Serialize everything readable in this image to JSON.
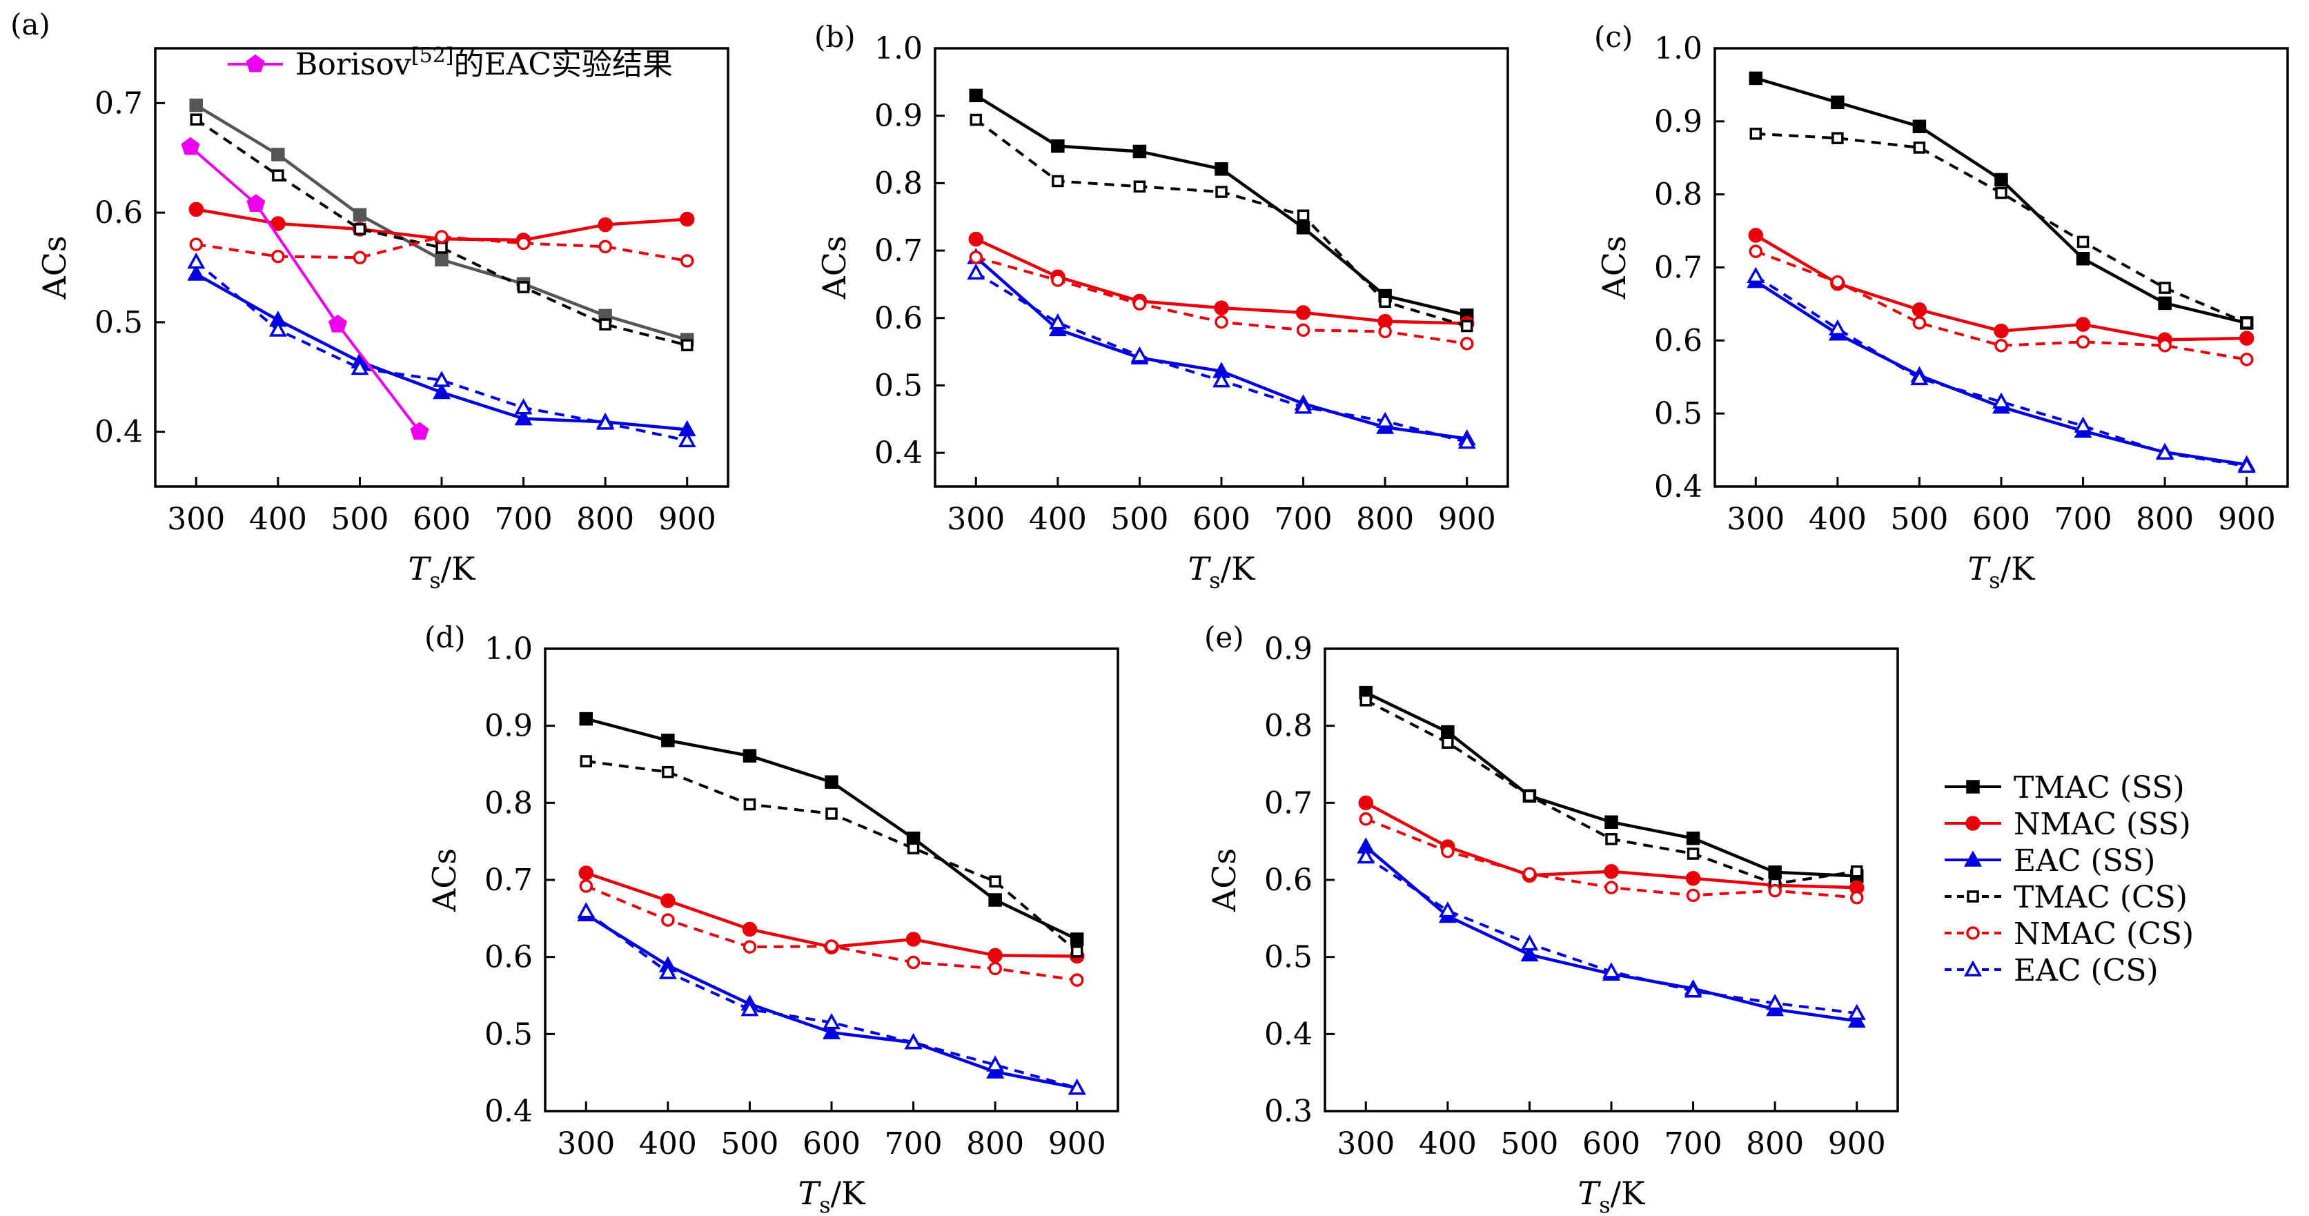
{
  "figure": {
    "legend": [
      {
        "key": "tmac_ss",
        "label": "TMAC (SS)"
      },
      {
        "key": "nmac_ss",
        "label": "NMAC (SS)"
      },
      {
        "key": "eac_ss",
        "label": "EAC (SS)"
      },
      {
        "key": "tmac_cs",
        "label": "TMAC (CS)"
      },
      {
        "key": "nmac_cs",
        "label": "NMAC (CS)"
      },
      {
        "key": "eac_cs",
        "label": "EAC (CS)"
      }
    ],
    "legend_placement": "right of panel (e)",
    "colors": {
      "black": "#000000",
      "gray": "#555555",
      "red": "#e8000b",
      "blue": "#0000e0",
      "magenta": "#ee00ee"
    }
  },
  "chart_data": [
    {
      "type": "line",
      "panel_label": "(a)",
      "xlabel": "T_s/K",
      "ylabel": "ACs",
      "x": [
        300,
        400,
        500,
        600,
        700,
        800,
        900
      ],
      "xticks": [
        "300",
        "400",
        "500",
        "600",
        "700",
        "800",
        "900"
      ],
      "ylim": [
        0.35,
        0.75
      ],
      "yticks": [
        "0.4",
        "0.5",
        "0.6",
        "0.7"
      ],
      "ytick_values": [
        0.4,
        0.5,
        0.6,
        0.7
      ],
      "series": [
        {
          "key": "tmac_ss",
          "name": "TMAC (SS)",
          "values": [
            0.698,
            0.653,
            0.598,
            0.557,
            0.535,
            0.506,
            0.484
          ]
        },
        {
          "key": "nmac_ss",
          "name": "NMAC (SS)",
          "values": [
            0.603,
            0.59,
            0.585,
            0.576,
            0.575,
            0.589,
            0.594
          ]
        },
        {
          "key": "eac_ss",
          "name": "EAC (SS)",
          "values": [
            0.544,
            0.502,
            0.464,
            0.436,
            0.412,
            0.409,
            0.402
          ]
        },
        {
          "key": "tmac_cs",
          "name": "TMAC (CS)",
          "values": [
            0.685,
            0.634,
            0.585,
            0.568,
            0.532,
            0.498,
            0.479
          ]
        },
        {
          "key": "nmac_cs",
          "name": "NMAC (CS)",
          "values": [
            0.571,
            0.56,
            0.559,
            0.578,
            0.572,
            0.569,
            0.556
          ]
        },
        {
          "key": "eac_cs",
          "name": "EAC (CS)",
          "values": [
            0.555,
            0.493,
            0.458,
            0.447,
            0.422,
            0.408,
            0.392
          ]
        }
      ],
      "extra_series": {
        "key": "borisov",
        "name": "Borisov[52]的EAC实验结果",
        "label_main": "Borisov",
        "label_sup": "[52]",
        "label_tail": "的EAC实验结果",
        "x": [
          293,
          373,
          473,
          573
        ],
        "values": [
          0.66,
          0.608,
          0.498,
          0.4
        ]
      }
    },
    {
      "type": "line",
      "panel_label": "(b)",
      "xlabel": "T_s/K",
      "ylabel": "ACs",
      "x": [
        300,
        400,
        500,
        600,
        700,
        800,
        900
      ],
      "xticks": [
        "300",
        "400",
        "500",
        "600",
        "700",
        "800",
        "900"
      ],
      "ylim": [
        0.35,
        1.0
      ],
      "yticks": [
        "0.4",
        "0.5",
        "0.6",
        "0.7",
        "0.8",
        "0.9",
        "1.0"
      ],
      "ytick_values": [
        0.4,
        0.5,
        0.6,
        0.7,
        0.8,
        0.9,
        1.0
      ],
      "series": [
        {
          "key": "tmac_ss",
          "name": "TMAC (SS)",
          "values": [
            0.93,
            0.855,
            0.847,
            0.821,
            0.734,
            0.633,
            0.604
          ]
        },
        {
          "key": "nmac_ss",
          "name": "NMAC (SS)",
          "values": [
            0.717,
            0.661,
            0.625,
            0.615,
            0.608,
            0.595,
            0.592
          ]
        },
        {
          "key": "eac_ss",
          "name": "EAC (SS)",
          "values": [
            0.69,
            0.583,
            0.541,
            0.521,
            0.473,
            0.438,
            0.421
          ]
        },
        {
          "key": "tmac_cs",
          "name": "TMAC (CS)",
          "values": [
            0.894,
            0.803,
            0.795,
            0.787,
            0.752,
            0.624,
            0.588
          ]
        },
        {
          "key": "nmac_cs",
          "name": "NMAC (CS)",
          "values": [
            0.69,
            0.656,
            0.621,
            0.594,
            0.582,
            0.58,
            0.562
          ]
        },
        {
          "key": "eac_cs",
          "name": "EAC (CS)",
          "values": [
            0.667,
            0.593,
            0.544,
            0.507,
            0.468,
            0.447,
            0.416
          ]
        }
      ]
    },
    {
      "type": "line",
      "panel_label": "(c)",
      "xlabel": "T_s/K",
      "ylabel": "ACs",
      "x": [
        300,
        400,
        500,
        600,
        700,
        800,
        900
      ],
      "xticks": [
        "300",
        "400",
        "500",
        "600",
        "700",
        "800",
        "900"
      ],
      "ylim": [
        0.4,
        1.0
      ],
      "yticks": [
        "0.4",
        "0.5",
        "0.6",
        "0.7",
        "0.8",
        "0.9",
        "1.0"
      ],
      "ytick_values": [
        0.4,
        0.5,
        0.6,
        0.7,
        0.8,
        0.9,
        1.0
      ],
      "series": [
        {
          "key": "tmac_ss",
          "name": "TMAC (SS)",
          "values": [
            0.959,
            0.926,
            0.893,
            0.82,
            0.712,
            0.651,
            0.624
          ]
        },
        {
          "key": "nmac_ss",
          "name": "NMAC (SS)",
          "values": [
            0.744,
            0.678,
            0.642,
            0.613,
            0.622,
            0.601,
            0.603
          ]
        },
        {
          "key": "eac_ss",
          "name": "EAC (SS)",
          "values": [
            0.681,
            0.609,
            0.552,
            0.509,
            0.476,
            0.447,
            0.43
          ]
        },
        {
          "key": "tmac_cs",
          "name": "TMAC (CS)",
          "values": [
            0.883,
            0.877,
            0.864,
            0.802,
            0.735,
            0.672,
            0.624
          ]
        },
        {
          "key": "nmac_cs",
          "name": "NMAC (CS)",
          "values": [
            0.722,
            0.68,
            0.624,
            0.593,
            0.598,
            0.593,
            0.574
          ]
        },
        {
          "key": "eac_cs",
          "name": "EAC (CS)",
          "values": [
            0.688,
            0.616,
            0.548,
            0.516,
            0.483,
            0.446,
            0.428
          ]
        }
      ]
    },
    {
      "type": "line",
      "panel_label": "(d)",
      "xlabel": "T_s/K",
      "ylabel": "ACs",
      "x": [
        300,
        400,
        500,
        600,
        700,
        800,
        900
      ],
      "xticks": [
        "300",
        "400",
        "500",
        "600",
        "700",
        "800",
        "900"
      ],
      "ylim": [
        0.4,
        1.0
      ],
      "yticks": [
        "0.4",
        "0.5",
        "0.6",
        "0.7",
        "0.8",
        "0.9",
        "1.0"
      ],
      "ytick_values": [
        0.4,
        0.5,
        0.6,
        0.7,
        0.8,
        0.9,
        1.0
      ],
      "series": [
        {
          "key": "tmac_ss",
          "name": "TMAC (SS)",
          "values": [
            0.909,
            0.881,
            0.861,
            0.827,
            0.754,
            0.674,
            0.623
          ]
        },
        {
          "key": "nmac_ss",
          "name": "NMAC (SS)",
          "values": [
            0.709,
            0.673,
            0.636,
            0.613,
            0.623,
            0.602,
            0.601
          ]
        },
        {
          "key": "eac_ss",
          "name": "EAC (SS)",
          "values": [
            0.655,
            0.589,
            0.539,
            0.502,
            0.489,
            0.451,
            0.43
          ]
        },
        {
          "key": "tmac_cs",
          "name": "TMAC (CS)",
          "values": [
            0.854,
            0.84,
            0.798,
            0.786,
            0.741,
            0.698,
            0.607
          ]
        },
        {
          "key": "nmac_cs",
          "name": "NMAC (CS)",
          "values": [
            0.692,
            0.648,
            0.613,
            0.614,
            0.593,
            0.585,
            0.57
          ]
        },
        {
          "key": "eac_cs",
          "name": "EAC (CS)",
          "values": [
            0.659,
            0.58,
            0.532,
            0.515,
            0.489,
            0.46,
            0.43
          ]
        }
      ]
    },
    {
      "type": "line",
      "panel_label": "(e)",
      "xlabel": "T_s/K",
      "ylabel": "ACs",
      "x": [
        300,
        400,
        500,
        600,
        700,
        800,
        900
      ],
      "xticks": [
        "300",
        "400",
        "500",
        "600",
        "700",
        "800",
        "900"
      ],
      "ylim": [
        0.3,
        0.9
      ],
      "yticks": [
        "0.3",
        "0.4",
        "0.5",
        "0.6",
        "0.7",
        "0.8",
        "0.9"
      ],
      "ytick_values": [
        0.3,
        0.4,
        0.5,
        0.6,
        0.7,
        0.8,
        0.9
      ],
      "series": [
        {
          "key": "tmac_ss",
          "name": "TMAC (SS)",
          "values": [
            0.843,
            0.792,
            0.709,
            0.675,
            0.654,
            0.61,
            0.605
          ]
        },
        {
          "key": "nmac_ss",
          "name": "NMAC (SS)",
          "values": [
            0.7,
            0.643,
            0.606,
            0.611,
            0.602,
            0.593,
            0.59
          ]
        },
        {
          "key": "eac_ss",
          "name": "EAC (SS)",
          "values": [
            0.643,
            0.553,
            0.503,
            0.478,
            0.459,
            0.432,
            0.417
          ]
        },
        {
          "key": "tmac_cs",
          "name": "TMAC (CS)",
          "values": [
            0.833,
            0.778,
            0.709,
            0.653,
            0.634,
            0.595,
            0.611
          ]
        },
        {
          "key": "nmac_cs",
          "name": "NMAC (CS)",
          "values": [
            0.679,
            0.637,
            0.608,
            0.59,
            0.58,
            0.586,
            0.577
          ]
        },
        {
          "key": "eac_cs",
          "name": "EAC (CS)",
          "values": [
            0.63,
            0.56,
            0.517,
            0.481,
            0.456,
            0.44,
            0.427
          ]
        }
      ]
    }
  ]
}
